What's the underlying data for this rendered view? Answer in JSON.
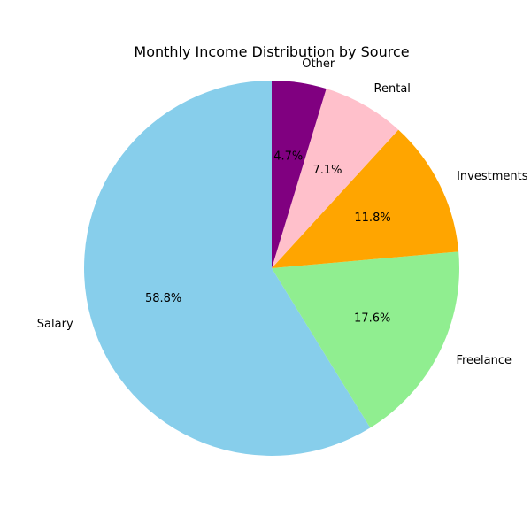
{
  "chart_data": {
    "type": "pie",
    "title": "Monthly Income Distribution by Source",
    "start_angle_deg": 90,
    "direction": "counterclockwise",
    "slices": [
      {
        "label": "Salary",
        "value": 58.8,
        "pct_label": "58.8%",
        "color": "#87CEEB"
      },
      {
        "label": "Freelance",
        "value": 17.6,
        "pct_label": "17.6%",
        "color": "#90EE90"
      },
      {
        "label": "Investments",
        "value": 11.8,
        "pct_label": "11.8%",
        "color": "#FFA500"
      },
      {
        "label": "Rental",
        "value": 7.1,
        "pct_label": "7.1%",
        "color": "#FFC0CB"
      },
      {
        "label": "Other",
        "value": 4.7,
        "pct_label": "4.7%",
        "color": "#800080"
      }
    ]
  }
}
